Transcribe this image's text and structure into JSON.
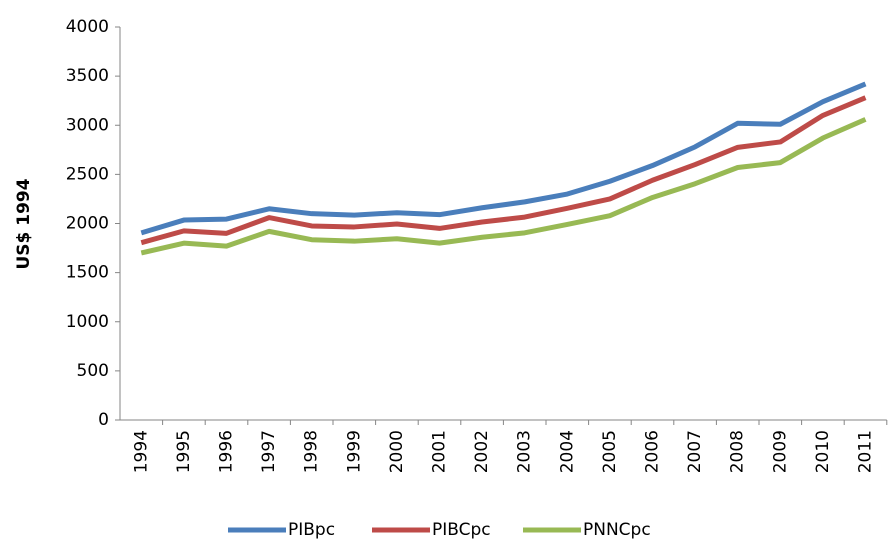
{
  "chart_data": {
    "type": "line",
    "y_label": "US$ 1994",
    "categories": [
      "1994",
      "1995",
      "1996",
      "1997",
      "1998",
      "1999",
      "2000",
      "2001",
      "2002",
      "2003",
      "2004",
      "2005",
      "2006",
      "2007",
      "2008",
      "2009",
      "2010",
      "2011"
    ],
    "series": [
      {
        "name": "PIBpc",
        "color": "#4a7ebb",
        "values": [
          1905,
          2035,
          2045,
          2150,
          2100,
          2085,
          2110,
          2090,
          2160,
          2220,
          2300,
          2430,
          2590,
          2780,
          3020,
          3010,
          3240,
          3420
        ]
      },
      {
        "name": "PIBCpc",
        "color": "#be4b48",
        "values": [
          1805,
          1925,
          1900,
          2060,
          1975,
          1965,
          1995,
          1950,
          2015,
          2065,
          2155,
          2250,
          2440,
          2600,
          2775,
          2830,
          3100,
          3280
        ]
      },
      {
        "name": "PNNCpc",
        "color": "#98b954",
        "values": [
          1700,
          1800,
          1770,
          1920,
          1835,
          1820,
          1845,
          1800,
          1860,
          1905,
          1990,
          2080,
          2265,
          2405,
          2570,
          2620,
          2870,
          3060
        ]
      }
    ],
    "ylim": [
      0,
      4000
    ],
    "yticks": [
      0,
      500,
      1000,
      1500,
      2000,
      2500,
      3000,
      3500,
      4000
    ],
    "grid": false,
    "legend": "bottom"
  }
}
